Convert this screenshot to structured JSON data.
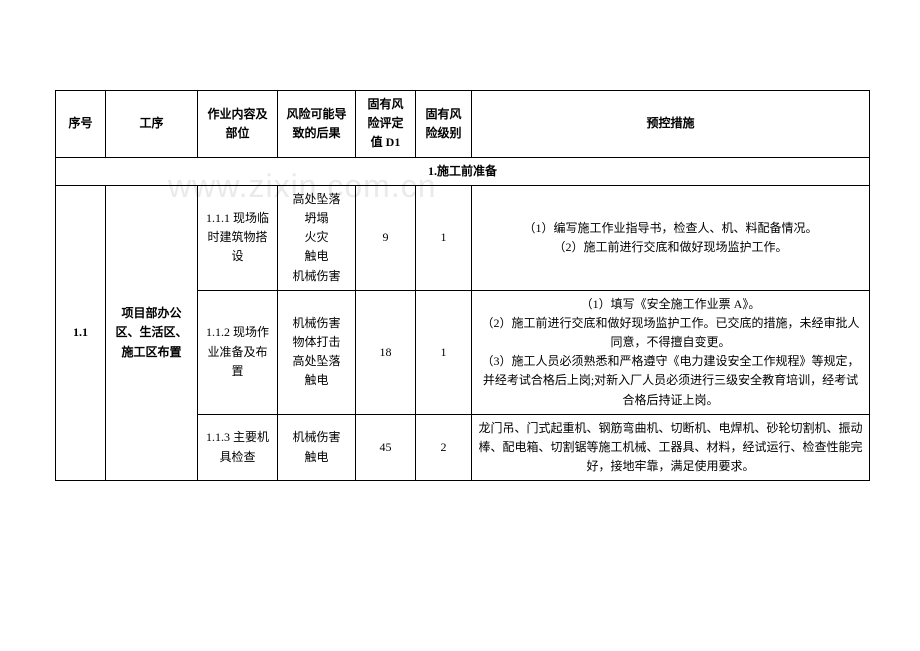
{
  "watermark": "www.zixin.com.cn",
  "headers": {
    "no": "序号",
    "stage": "工序",
    "part": "作业内容及部位",
    "risk": "风险可能导致的后果",
    "d1": "固有风险评定值 D1",
    "level": "固有风险级别",
    "ctrl": "预控措施"
  },
  "section": "1.施工前准备",
  "group": {
    "no": "1.1",
    "stage": "项目部办公区、生活区、施工区布置"
  },
  "rows": [
    {
      "part": "1.1.1 现场临时建筑物搭设",
      "risk": "高处坠落\n坍塌\n火灾\n触电\n机械伤害",
      "d1": "9",
      "level": "1",
      "ctrl": "（1）编写施工作业指导书，检查人、机、料配备情况。\n（2）施工前进行交底和做好现场监护工作。"
    },
    {
      "part": "1.1.2 现场作业准备及布置",
      "risk": "机械伤害\n物体打击\n高处坠落\n触电",
      "d1": "18",
      "level": "1",
      "ctrl": "（1）填写《安全施工作业票 A》。\n（2）施工前进行交底和做好现场监护工作。已交底的措施，未经审批人同意，不得擅自变更。\n（3）施工人员必须熟悉和严格遵守《电力建设安全工作规程》等规定，并经考试合格后上岗;对新入厂人员必须进行三级安全教育培训，经考试合格后持证上岗。"
    },
    {
      "part": "1.1.3 主要机具检查",
      "risk": "机械伤害\n触电",
      "d1": "45",
      "level": "2",
      "ctrl": "龙门吊、门式起重机、钢筋弯曲机、切断机、电焊机、砂轮切割机、振动棒、配电箱、切割锯等施工机械、工器具、材料，经试运行、检查性能完好，接地牢靠，满足使用要求。"
    }
  ]
}
